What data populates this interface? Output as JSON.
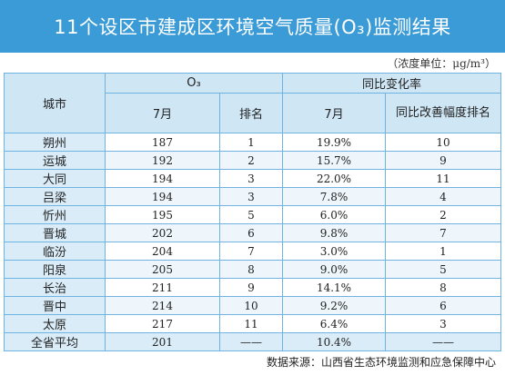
{
  "title": "11个设区市建成区环境空气质量(O₃)监测结果",
  "unit_note": "（浓度单位：μg/m³）",
  "headers": {
    "city": "城市",
    "group_o3": "O₃",
    "group_yoy": "同比变化率",
    "col_month": "7月",
    "col_rank": "排名",
    "col_yoy_month": "7月",
    "col_improve_rank": "同比改善幅度排名"
  },
  "rows": [
    {
      "city": "朔州",
      "value": "187",
      "rank": "1",
      "yoy": "19.9%",
      "improve_rank": "10"
    },
    {
      "city": "运城",
      "value": "192",
      "rank": "2",
      "yoy": "15.7%",
      "improve_rank": "9"
    },
    {
      "city": "大同",
      "value": "194",
      "rank": "3",
      "yoy": "22.0%",
      "improve_rank": "11"
    },
    {
      "city": "吕梁",
      "value": "194",
      "rank": "3",
      "yoy": "7.8%",
      "improve_rank": "4"
    },
    {
      "city": "忻州",
      "value": "195",
      "rank": "5",
      "yoy": "6.0%",
      "improve_rank": "2"
    },
    {
      "city": "晋城",
      "value": "202",
      "rank": "6",
      "yoy": "9.8%",
      "improve_rank": "7"
    },
    {
      "city": "临汾",
      "value": "204",
      "rank": "7",
      "yoy": "3.0%",
      "improve_rank": "1"
    },
    {
      "city": "阳泉",
      "value": "205",
      "rank": "8",
      "yoy": "9.0%",
      "improve_rank": "5"
    },
    {
      "city": "长治",
      "value": "211",
      "rank": "9",
      "yoy": "14.1%",
      "improve_rank": "8"
    },
    {
      "city": "晋中",
      "value": "214",
      "rank": "10",
      "yoy": "9.2%",
      "improve_rank": "6"
    },
    {
      "city": "太原",
      "value": "217",
      "rank": "11",
      "yoy": "6.4%",
      "improve_rank": "3"
    },
    {
      "city": "全省平均",
      "value": "201",
      "rank": "——",
      "yoy": "10.4%",
      "improve_rank": "——"
    }
  ],
  "source": "数据来源：山西省生态环境监测和应急保障中心",
  "colors": {
    "banner": "#3a9bd7",
    "header_bg": "#cfe6f5",
    "border": "#6fb4e0"
  }
}
